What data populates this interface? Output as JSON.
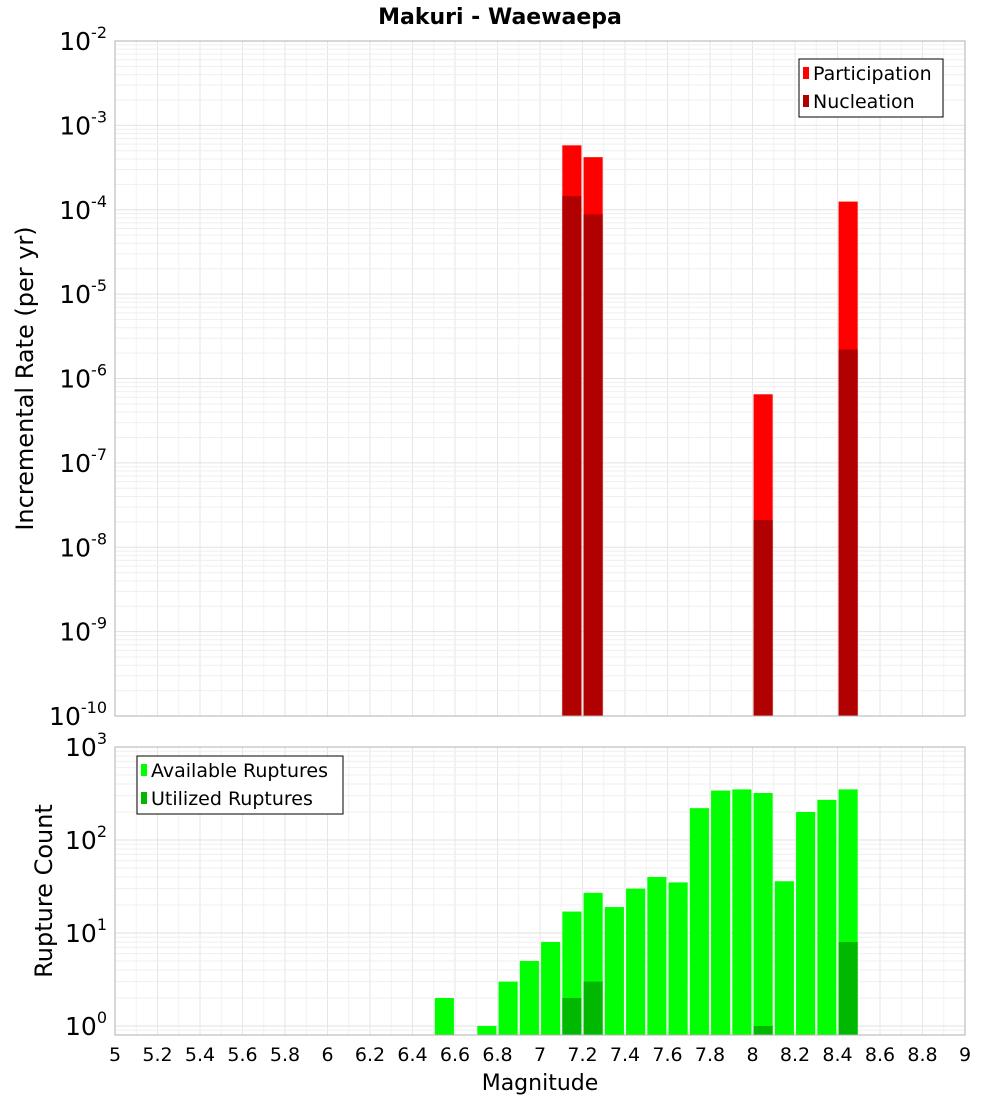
{
  "chart_data": [
    {
      "type": "bar",
      "title": "Makuri - Waewaepa",
      "xlabel": "",
      "ylabel": "Incremental Rate (per yr)",
      "xlim": [
        5,
        9
      ],
      "ylim": [
        1e-10,
        0.01
      ],
      "yscale": "log",
      "bar_width": 0.09,
      "y_ticks": [
        {
          "base": "10",
          "exp": "-10"
        },
        {
          "base": "10",
          "exp": "-9"
        },
        {
          "base": "10",
          "exp": "-8"
        },
        {
          "base": "10",
          "exp": "-7"
        },
        {
          "base": "10",
          "exp": "-6"
        },
        {
          "base": "10",
          "exp": "-5"
        },
        {
          "base": "10",
          "exp": "-4"
        },
        {
          "base": "10",
          "exp": "-3"
        },
        {
          "base": "10",
          "exp": "-2"
        }
      ],
      "legend_position": "top-right",
      "grid": true,
      "series": [
        {
          "name": "Participation",
          "color": "#ff0000",
          "points": [
            [
              7.15,
              0.00058
            ],
            [
              7.25,
              0.00042
            ],
            [
              8.05,
              6.5e-07
            ],
            [
              8.45,
              0.000125
            ]
          ]
        },
        {
          "name": "Nucleation",
          "color": "#b00000",
          "points": [
            [
              7.15,
              0.000145
            ],
            [
              7.25,
              8.8e-05
            ],
            [
              8.05,
              2.1e-08
            ],
            [
              8.45,
              2.2e-06
            ]
          ]
        }
      ]
    },
    {
      "type": "bar",
      "title": "",
      "xlabel": "Magnitude",
      "ylabel": "Rupture Count",
      "xlim": [
        5,
        9
      ],
      "ylim": [
        0.8,
        1000
      ],
      "yscale": "log",
      "bar_width": 0.09,
      "x_ticks": [
        "5",
        "5.2",
        "5.4",
        "5.6",
        "5.8",
        "6",
        "6.2",
        "6.4",
        "6.6",
        "6.8",
        "7",
        "7.2",
        "7.4",
        "7.6",
        "7.8",
        "8",
        "8.2",
        "8.4",
        "8.6",
        "8.8",
        "9"
      ],
      "y_ticks": [
        {
          "base": "10",
          "exp": "0"
        },
        {
          "base": "10",
          "exp": "1"
        },
        {
          "base": "10",
          "exp": "2"
        },
        {
          "base": "10",
          "exp": "3"
        }
      ],
      "legend_position": "top-left",
      "grid": true,
      "series": [
        {
          "name": "Available Ruptures",
          "color": "#00ff00",
          "points": [
            [
              6.55,
              2
            ],
            [
              6.75,
              1
            ],
            [
              6.85,
              3
            ],
            [
              6.95,
              5
            ],
            [
              7.05,
              8
            ],
            [
              7.15,
              17
            ],
            [
              7.25,
              27
            ],
            [
              7.35,
              19
            ],
            [
              7.45,
              30
            ],
            [
              7.55,
              40
            ],
            [
              7.65,
              35
            ],
            [
              7.75,
              220
            ],
            [
              7.85,
              340
            ],
            [
              7.95,
              350
            ],
            [
              8.05,
              320
            ],
            [
              8.15,
              36
            ],
            [
              8.25,
              200
            ],
            [
              8.35,
              270
            ],
            [
              8.45,
              350
            ]
          ]
        },
        {
          "name": "Utilized Ruptures",
          "color": "#00b800",
          "points": [
            [
              7.15,
              2
            ],
            [
              7.25,
              3
            ],
            [
              8.05,
              1
            ],
            [
              8.45,
              8
            ]
          ]
        }
      ]
    }
  ]
}
